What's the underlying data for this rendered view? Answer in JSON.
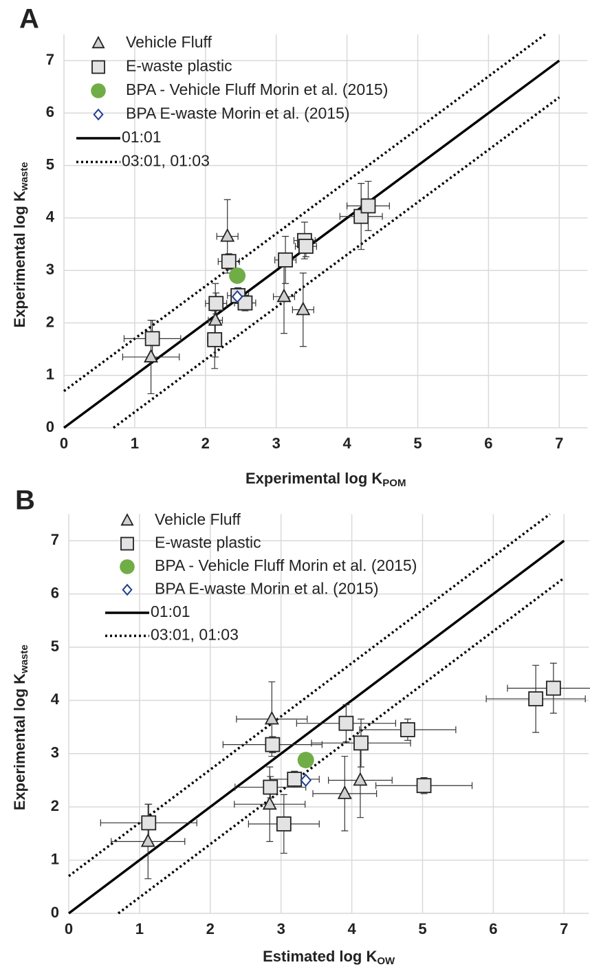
{
  "chart_data": [
    {
      "type": "scatter",
      "title": "A",
      "x_label": "Experimental log K",
      "x_label_sub": "POM",
      "y_label": "Experimental log K",
      "y_label_sub": "waste",
      "xlim": [
        0,
        7.4
      ],
      "ylim": [
        0,
        7.5
      ],
      "xticks": [
        0,
        1,
        2,
        3,
        4,
        5,
        6,
        7
      ],
      "yticks": [
        0,
        1,
        2,
        3,
        4,
        5,
        6,
        7
      ],
      "grid": true,
      "series": [
        {
          "name": "Vehicle Fluff",
          "marker": "triangle",
          "color": "#d0d0d0",
          "x": [
            1.23,
            2.14,
            2.31,
            3.11,
            3.38
          ],
          "values": [
            1.35,
            2.05,
            3.65,
            2.5,
            2.25
          ],
          "x_err": [
            0.4,
            0.1,
            0.15,
            0.15,
            0.15
          ],
          "y_err": [
            0.7,
            0.7,
            0.7,
            0.7,
            0.7
          ]
        },
        {
          "name": "E-waste plastic",
          "marker": "square",
          "color": "#e3e3e3",
          "x": [
            1.25,
            2.13,
            2.15,
            2.46,
            2.56,
            2.33,
            3.13,
            3.4,
            3.42,
            4.2,
            4.3
          ],
          "values": [
            1.7,
            1.68,
            2.37,
            2.52,
            2.38,
            3.17,
            3.2,
            3.57,
            3.46,
            4.03,
            4.23
          ],
          "x_err": [
            0.4,
            0.1,
            0.15,
            0.15,
            0.15,
            0.15,
            0.15,
            0.15,
            0.15,
            0.3,
            0.3
          ],
          "y_err": [
            0.35,
            0.55,
            0.2,
            0.15,
            0.15,
            0.15,
            0.45,
            0.35,
            0.2,
            0.63,
            0.47
          ]
        },
        {
          "name": "BPA - Vehicle Fluff Morin et al. (2015)",
          "marker": "circle",
          "color": "#70ad47",
          "x": [
            2.45
          ],
          "values": [
            2.9
          ]
        },
        {
          "name": "BPA E-waste Morin et al. (2015)",
          "marker": "diamond",
          "color": "#1f3f8f",
          "x": [
            2.45
          ],
          "values": [
            2.5
          ]
        },
        {
          "name": "01:01",
          "marker": "line",
          "style": "solid",
          "color": "#000000",
          "x": [
            0,
            7
          ],
          "values": [
            0,
            7
          ]
        },
        {
          "name": "03:01, 01:03",
          "marker": "line",
          "style": "dotted",
          "color": "#000000",
          "x": [
            0,
            6.8,
            null,
            0.7,
            7
          ],
          "values": [
            0.7,
            7.5,
            null,
            0,
            6.3
          ]
        }
      ]
    },
    {
      "type": "scatter",
      "title": "B",
      "x_label": "Estimated log K",
      "x_label_sub": "OW",
      "y_label": "Experimental log K",
      "y_label_sub": "waste",
      "xlim": [
        0,
        7.35
      ],
      "ylim": [
        0,
        7.5
      ],
      "xticks": [
        0,
        1,
        2,
        3,
        4,
        5,
        6,
        7
      ],
      "yticks": [
        0,
        1,
        2,
        3,
        4,
        5,
        6,
        7
      ],
      "grid": true,
      "series": [
        {
          "name": "Vehicle Fluff",
          "marker": "triangle",
          "color": "#d0d0d0",
          "x": [
            1.12,
            2.84,
            2.87,
            4.12,
            3.9
          ],
          "values": [
            1.35,
            2.05,
            3.65,
            2.5,
            2.25
          ],
          "x_err": [
            0.52,
            0.5,
            0.5,
            0.45,
            0.45
          ],
          "y_err": [
            0.7,
            0.7,
            0.7,
            0.7,
            0.7
          ]
        },
        {
          "name": "E-waste plastic",
          "marker": "square",
          "color": "#e3e3e3",
          "x": [
            1.13,
            3.04,
            2.85,
            3.19,
            5.02,
            2.88,
            4.13,
            3.92,
            4.79,
            6.6,
            6.85
          ],
          "values": [
            1.7,
            1.68,
            2.37,
            2.52,
            2.4,
            3.17,
            3.2,
            3.57,
            3.45,
            4.03,
            4.23
          ],
          "x_err": [
            0.68,
            0.5,
            0.5,
            0.35,
            0.68,
            0.7,
            0.7,
            0.7,
            0.68,
            0.7,
            0.65
          ],
          "y_err": [
            0.35,
            0.55,
            0.2,
            0.15,
            0.15,
            0.15,
            0.45,
            0.35,
            0.2,
            0.63,
            0.47
          ]
        },
        {
          "name": "BPA - Vehicle Fluff Morin et al. (2015)",
          "marker": "circle",
          "color": "#70ad47",
          "x": [
            3.35
          ],
          "values": [
            2.88
          ]
        },
        {
          "name": "BPA E-waste Morin et al. (2015)",
          "marker": "diamond",
          "color": "#1f3f8f",
          "x": [
            3.35
          ],
          "values": [
            2.5
          ]
        },
        {
          "name": "01:01",
          "marker": "line",
          "style": "solid",
          "color": "#000000",
          "x": [
            0,
            7
          ],
          "values": [
            0,
            7
          ]
        },
        {
          "name": "03:01, 01:03",
          "marker": "line",
          "style": "dotted",
          "color": "#000000",
          "x": [
            0,
            6.8,
            null,
            0.7,
            7
          ],
          "values": [
            0.7,
            7.5,
            null,
            0,
            6.3
          ]
        }
      ]
    }
  ]
}
